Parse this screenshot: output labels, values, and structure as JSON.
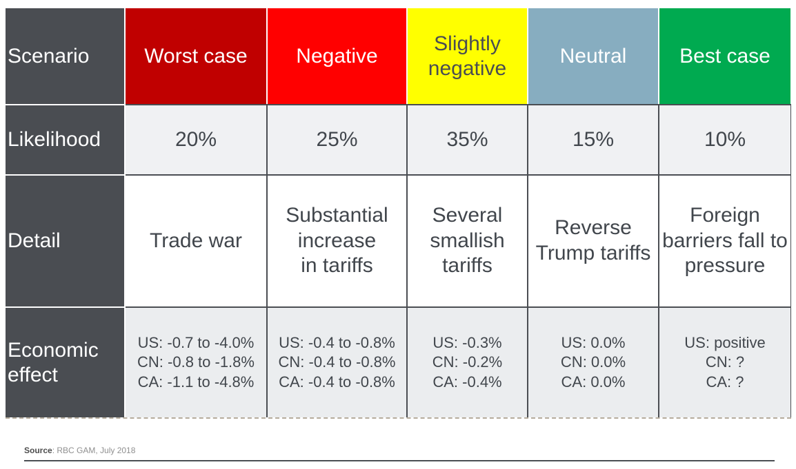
{
  "table": {
    "row_labels": [
      "Scenario",
      "Likelihood",
      "Detail",
      "Economic\neffect"
    ],
    "columns": [
      {
        "name": "Worst case",
        "header_bg": "#C00000",
        "header_text": "#FFFFFF",
        "likelihood": "20%",
        "detail": "Trade war",
        "economic_effect": "US: -0.7 to -4.0%\nCN: -0.8 to -1.8%\nCA: -1.1 to -4.8%"
      },
      {
        "name": "Negative",
        "header_bg": "#FF0000",
        "header_text": "#FFFFFF",
        "likelihood": "25%",
        "detail": "Substantial\nincrease\nin tariffs",
        "economic_effect": "US: -0.4 to -0.8%\nCN: -0.4 to -0.8%\nCA: -0.4 to -0.8%"
      },
      {
        "name": "Slightly\nnegative",
        "header_bg": "#FFFF00",
        "header_text": "#4A4D52",
        "likelihood": "35%",
        "detail": "Several\nsmallish\ntariffs",
        "economic_effect": "US: -0.3%\nCN: -0.2%\nCA: -0.4%"
      },
      {
        "name": "Neutral",
        "header_bg": "#87ADC0",
        "header_text": "#FFFFFF",
        "likelihood": "15%",
        "detail": "Reverse\nTrump tariffs",
        "economic_effect": "US: 0.0%\nCN: 0.0%\nCA: 0.0%"
      },
      {
        "name": "Best case",
        "header_bg": "#00AA50",
        "header_text": "#FFFFFF",
        "likelihood": "10%",
        "detail": "Foreign\nbarriers fall to\npressure",
        "economic_effect": "US: positive\nCN: ?\nCA: ?"
      }
    ]
  },
  "source": {
    "label": "Source",
    "text": ": RBC GAM, July 2018"
  },
  "colors": {
    "label_bg": "#4A4D52",
    "border": "#4A4D52",
    "likelihood_bg": "#F0F1F3",
    "detail_bg": "#FFFFFF",
    "economic_bg": "#EBEDEF",
    "body_text": "#41464C",
    "bottom_dash": "#b5ab9c"
  }
}
